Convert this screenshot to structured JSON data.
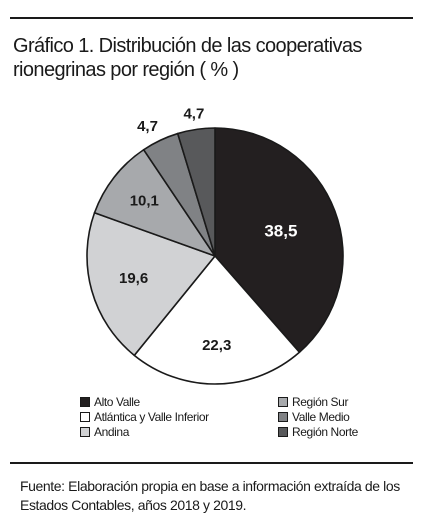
{
  "title": {
    "line1": "Gráfico 1. Distribución de las cooperativas",
    "line2": "rionegrinas por región ( % )"
  },
  "chart_data": {
    "type": "pie",
    "categories": [
      "Alto Valle",
      "Atlántica y Valle Inferior",
      "Andina",
      "Región Sur",
      "Valle Medio",
      "Región Norte"
    ],
    "values": [
      38.5,
      22.3,
      19.6,
      10.1,
      4.7,
      4.7
    ],
    "value_labels": [
      "38,5",
      "22,3",
      "19,6",
      "10,1",
      "4,7",
      "4,7"
    ],
    "colors": [
      "#231f20",
      "#ffffff",
      "#d1d2d4",
      "#a7a9ac",
      "#808285",
      "#58595b"
    ],
    "label_colors": [
      "#ffffff",
      "#1a1a1a",
      "#1a1a1a",
      "#1a1a1a",
      "#1a1a1a",
      "#1a1a1a"
    ],
    "start": "12 o'clock",
    "direction": "clockwise"
  },
  "legend": {
    "left": [
      {
        "label": "Alto Valle",
        "color": "#231f20"
      },
      {
        "label": "Atlántica y Valle Inferior",
        "color": "#ffffff"
      },
      {
        "label": "Andina",
        "color": "#d1d2d4"
      }
    ],
    "right": [
      {
        "label": "Región Sur",
        "color": "#a7a9ac"
      },
      {
        "label": "Valle Medio",
        "color": "#808285"
      },
      {
        "label": "Región Norte",
        "color": "#58595b"
      }
    ]
  },
  "source": {
    "line1": "Fuente: Elaboración propia en base a información extraída de los",
    "line2": "Estados Contables, años 2018 y 2019."
  }
}
